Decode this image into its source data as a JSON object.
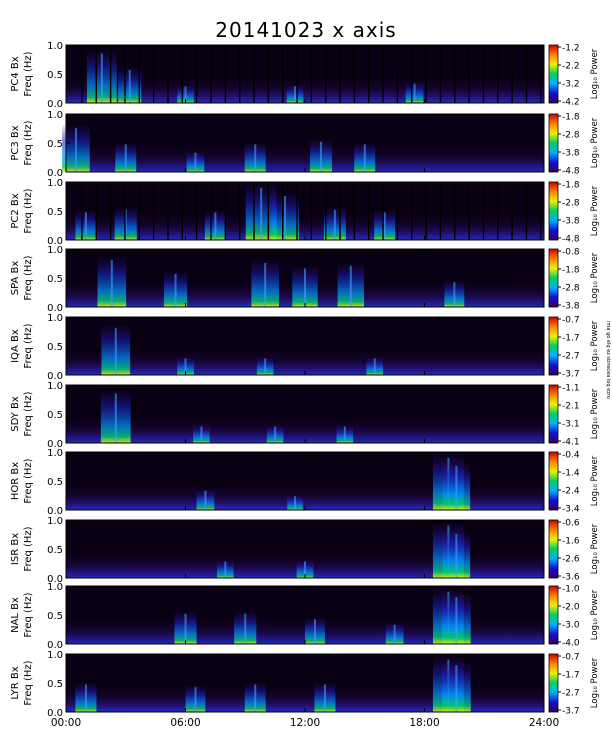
{
  "title": "20141023 x axis",
  "chart_data": {
    "type": "heatmap",
    "title": "20141023 x axis",
    "xlabel": "",
    "x_tick_labels": [
      "00:00",
      "06:00",
      "12:00",
      "18:00",
      "24:00"
    ],
    "x_range_hours": [
      0,
      24
    ],
    "ylabel": "Freq (Hz)",
    "y_range": [
      0,
      1.0
    ],
    "y_tick_labels": [
      "0.0",
      "0.5",
      "1.0"
    ],
    "colorbar_label": "Log₁₀ Power",
    "colormap": [
      "#3a005a",
      "#1010d0",
      "#00b0ff",
      "#00d060",
      "#f0f000",
      "#ff8000",
      "#d00000"
    ],
    "panels": [
      {
        "station": "PC4",
        "label": "PC4 Bx",
        "cbar_ticks": [
          "-1.2",
          "-2.2",
          "-3.2",
          "-4.2"
        ],
        "gaps": true,
        "bursts": [
          [
            1.8,
            0.9
          ],
          [
            3.2,
            0.6
          ],
          [
            6.0,
            0.3
          ],
          [
            11.5,
            0.3
          ],
          [
            17.5,
            0.35
          ]
        ]
      },
      {
        "station": "PC3",
        "label": "PC3 Bx",
        "cbar_ticks": [
          "-1.8",
          "-2.8",
          "-3.8",
          "-4.8"
        ],
        "gaps": false,
        "bursts": [
          [
            0.5,
            0.8
          ],
          [
            3.0,
            0.5
          ],
          [
            6.5,
            0.35
          ],
          [
            9.5,
            0.5
          ],
          [
            12.8,
            0.55
          ],
          [
            15.0,
            0.5
          ]
        ]
      },
      {
        "station": "PC2",
        "label": "PC2 Bx",
        "cbar_ticks": [
          "-1.8",
          "-2.8",
          "-3.8",
          "-4.8"
        ],
        "gaps": true,
        "bursts": [
          [
            1.0,
            0.5
          ],
          [
            3.0,
            0.55
          ],
          [
            7.5,
            0.5
          ],
          [
            9.8,
            0.95
          ],
          [
            11.0,
            0.8
          ],
          [
            13.5,
            0.55
          ],
          [
            16.0,
            0.5
          ]
        ]
      },
      {
        "station": "SPA",
        "label": "SPA Bx",
        "cbar_ticks": [
          "-0.8",
          "-1.8",
          "-2.8",
          "-3.8"
        ],
        "gaps": false,
        "bursts": [
          [
            2.3,
            0.85
          ],
          [
            5.5,
            0.6
          ],
          [
            10.0,
            0.8
          ],
          [
            12.0,
            0.7
          ],
          [
            14.3,
            0.75
          ],
          [
            19.5,
            0.45
          ]
        ]
      },
      {
        "station": "IQA",
        "label": "IQA Bx",
        "cbar_ticks": [
          "-0.7",
          "-1.7",
          "-2.7",
          "-3.7"
        ],
        "gaps": false,
        "bursts": [
          [
            2.5,
            0.85
          ],
          [
            6.0,
            0.3
          ],
          [
            10.0,
            0.3
          ],
          [
            15.5,
            0.3
          ]
        ]
      },
      {
        "station": "SDY",
        "label": "SDY Bx",
        "cbar_ticks": [
          "-1.1",
          "-2.1",
          "-3.1",
          "-4.1"
        ],
        "gaps": false,
        "bursts": [
          [
            2.5,
            0.9
          ],
          [
            6.8,
            0.3
          ],
          [
            10.5,
            0.3
          ],
          [
            14.0,
            0.3
          ]
        ]
      },
      {
        "station": "HOR",
        "label": "HOR Bx",
        "cbar_ticks": [
          "-0.4",
          "-1.4",
          "-2.4",
          "-3.4"
        ],
        "gaps": false,
        "bursts": [
          [
            7.0,
            0.35
          ],
          [
            11.5,
            0.25
          ],
          [
            19.2,
            0.95
          ],
          [
            19.6,
            0.8
          ]
        ]
      },
      {
        "station": "ISR",
        "label": "ISR Bx",
        "cbar_ticks": [
          "-0.6",
          "-1.6",
          "-2.6",
          "-3.6"
        ],
        "gaps": false,
        "bursts": [
          [
            8.0,
            0.3
          ],
          [
            12.0,
            0.3
          ],
          [
            19.2,
            0.95
          ],
          [
            19.6,
            0.8
          ]
        ]
      },
      {
        "station": "NAL",
        "label": "NAL Bx",
        "cbar_ticks": [
          "-1.0",
          "-2.0",
          "-3.0",
          "-4.0"
        ],
        "gaps": false,
        "bursts": [
          [
            6.0,
            0.55
          ],
          [
            9.0,
            0.55
          ],
          [
            12.5,
            0.45
          ],
          [
            16.5,
            0.35
          ],
          [
            19.2,
            0.95
          ],
          [
            19.6,
            0.85
          ]
        ]
      },
      {
        "station": "LYR",
        "label": "LYR Bx",
        "cbar_ticks": [
          "-0.7",
          "-1.7",
          "-2.7",
          "-3.7"
        ],
        "gaps": false,
        "bursts": [
          [
            1.0,
            0.5
          ],
          [
            6.5,
            0.45
          ],
          [
            9.5,
            0.5
          ],
          [
            13.0,
            0.5
          ],
          [
            19.2,
            0.95
          ],
          [
            19.6,
            0.85
          ]
        ]
      }
    ],
    "side_note": "ima go elq ez sbnecea loq ezro"
  }
}
